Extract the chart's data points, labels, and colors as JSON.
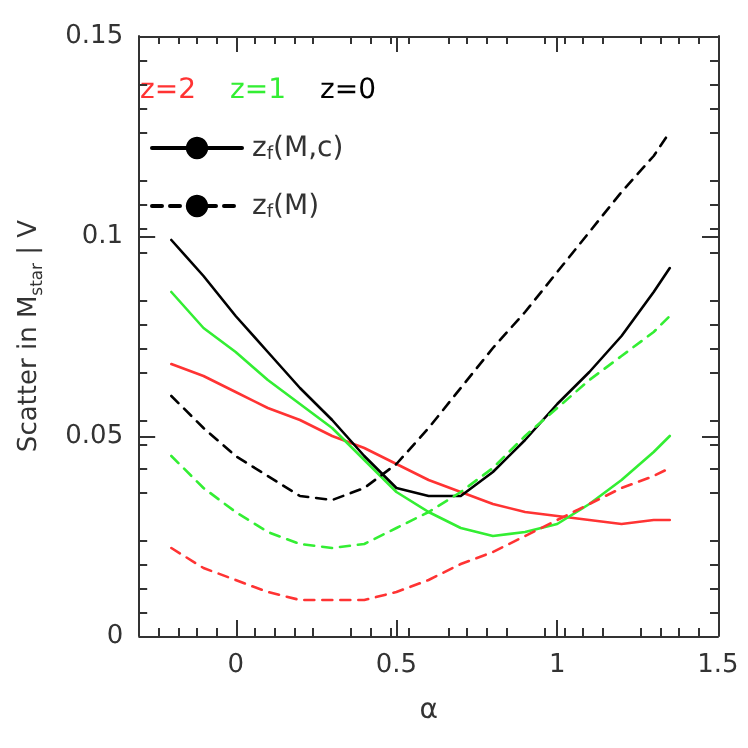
{
  "chart_data": {
    "type": "line",
    "xlabel": "α",
    "ylabel": "Scatter in M$_{star}$ | V",
    "x": [
      -0.2,
      -0.1,
      0,
      0.1,
      0.2,
      0.3,
      0.4,
      0.5,
      0.6,
      0.7,
      0.8,
      0.9,
      1.0,
      1.1,
      1.2,
      1.3,
      1.35
    ],
    "xlim": [
      -0.3,
      1.5
    ],
    "xticks": [
      0,
      0.5,
      1,
      1.5
    ],
    "ylim": [
      0,
      0.15
    ],
    "yticks": [
      0,
      0.05,
      0.1,
      0.15
    ],
    "grid": false,
    "legend": "top left",
    "marker": "none",
    "annotations": [
      "z=2",
      "z=1",
      "z=0"
    ],
    "series": [
      {
        "color": "#ff3333",
        "line_style": "solid",
        "values": [
          0.068,
          0.065,
          0.061,
          0.057,
          0.054,
          0.05,
          0.047,
          0.043,
          0.039,
          0.036,
          0.033,
          0.031,
          0.03,
          0.029,
          0.028,
          0.029,
          0.029
        ]
      },
      {
        "color": "#33ee33",
        "line_style": "solid",
        "values": [
          0.086,
          0.077,
          0.071,
          0.064,
          0.058,
          0.052,
          0.044,
          0.036,
          0.031,
          0.027,
          0.025,
          0.026,
          0.028,
          0.033,
          0.039,
          0.046,
          0.05
        ]
      },
      {
        "name": "z$_{f}$(M,c)",
        "color": "#000000",
        "line_style": "solid",
        "values": [
          0.099,
          0.09,
          0.08,
          0.071,
          0.062,
          0.054,
          0.045,
          0.037,
          0.035,
          0.035,
          0.041,
          0.049,
          0.058,
          0.066,
          0.075,
          0.086,
          0.092
        ]
      },
      {
        "color": "#ff3333",
        "line_style": "dashed",
        "values": [
          0.022,
          0.017,
          0.014,
          0.011,
          0.009,
          0.009,
          0.009,
          0.011,
          0.014,
          0.018,
          0.021,
          0.025,
          0.029,
          0.033,
          0.037,
          0.04,
          0.042
        ]
      },
      {
        "color": "#33ee33",
        "line_style": "dashed",
        "values": [
          0.045,
          0.037,
          0.031,
          0.026,
          0.023,
          0.022,
          0.023,
          0.027,
          0.031,
          0.036,
          0.042,
          0.05,
          0.057,
          0.064,
          0.07,
          0.076,
          0.08
        ]
      },
      {
        "name": "z$_{f}$(M)",
        "color": "#000000",
        "line_style": "dashed",
        "values": [
          0.06,
          0.052,
          0.045,
          0.04,
          0.035,
          0.034,
          0.037,
          0.043,
          0.052,
          0.062,
          0.072,
          0.081,
          0.091,
          0.101,
          0.111,
          0.12,
          0.126
        ]
      }
    ]
  }
}
